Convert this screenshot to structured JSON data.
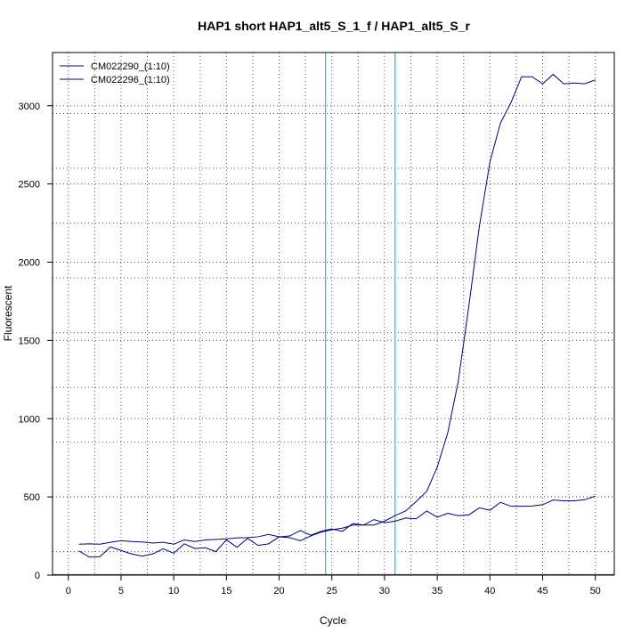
{
  "chart_data": {
    "type": "line",
    "title": "HAP1 short HAP1_alt5_S_1_f / HAP1_alt5_S_r",
    "xlabel": "Cycle",
    "ylabel": "Fluorescent",
    "xlim": [
      -1.5,
      51.8
    ],
    "ylim": [
      0,
      3340
    ],
    "x_ticks": [
      0,
      5,
      10,
      15,
      20,
      25,
      30,
      35,
      40,
      45,
      50
    ],
    "y_ticks": [
      0,
      500,
      1000,
      1500,
      2000,
      2500,
      3000
    ],
    "x_grid": [
      2.5,
      7.5,
      12.5,
      17.5,
      22.5,
      27.5,
      32.5,
      37.5,
      42.5,
      47.5
    ],
    "y_grid": [
      150,
      500,
      850,
      1200,
      1550,
      1900,
      2250,
      2600,
      2950
    ],
    "grid": true,
    "legend_position": "top-left",
    "threshold_lines": [
      24.4,
      31.0
    ],
    "threshold_color": "#00d0d0",
    "line_color": "#00007f",
    "baseline_color": "#b22222",
    "series": [
      {
        "name": "CM022290_(1:10)",
        "x": [
          1,
          2,
          3,
          4,
          5,
          6,
          7,
          8,
          9,
          10,
          11,
          12,
          13,
          14,
          15,
          16,
          17,
          18,
          19,
          20,
          21,
          22,
          23,
          24,
          25,
          26,
          27,
          28,
          29,
          30,
          31,
          32,
          33,
          34,
          35,
          36,
          37,
          38,
          39,
          40,
          41,
          42,
          43,
          44,
          45,
          46,
          47,
          48,
          49,
          50
        ],
        "values": [
          155,
          115,
          118,
          180,
          158,
          135,
          122,
          135,
          168,
          140,
          200,
          170,
          175,
          150,
          225,
          178,
          235,
          190,
          200,
          245,
          240,
          220,
          250,
          275,
          290,
          300,
          320,
          320,
          320,
          345,
          380,
          410,
          470,
          535,
          690,
          910,
          1240,
          1720,
          2230,
          2640,
          2890,
          3020,
          3185,
          3185,
          3140,
          3200,
          3140,
          3145,
          3140,
          3165
        ]
      },
      {
        "name": "CM022296_(1:10)",
        "x": [
          1,
          2,
          3,
          4,
          5,
          6,
          7,
          8,
          9,
          10,
          11,
          12,
          13,
          14,
          15,
          16,
          17,
          18,
          19,
          20,
          21,
          22,
          23,
          24,
          25,
          26,
          27,
          28,
          29,
          30,
          31,
          32,
          33,
          34,
          35,
          36,
          37,
          38,
          39,
          40,
          41,
          42,
          43,
          44,
          45,
          46,
          47,
          48,
          49,
          50
        ],
        "values": [
          198,
          200,
          198,
          210,
          220,
          215,
          212,
          205,
          210,
          198,
          225,
          215,
          225,
          228,
          232,
          238,
          240,
          245,
          260,
          245,
          250,
          285,
          255,
          280,
          295,
          280,
          330,
          320,
          355,
          335,
          345,
          365,
          360,
          410,
          370,
          395,
          380,
          385,
          430,
          415,
          465,
          440,
          440,
          442,
          450,
          480,
          475,
          475,
          482,
          505
        ]
      }
    ]
  }
}
